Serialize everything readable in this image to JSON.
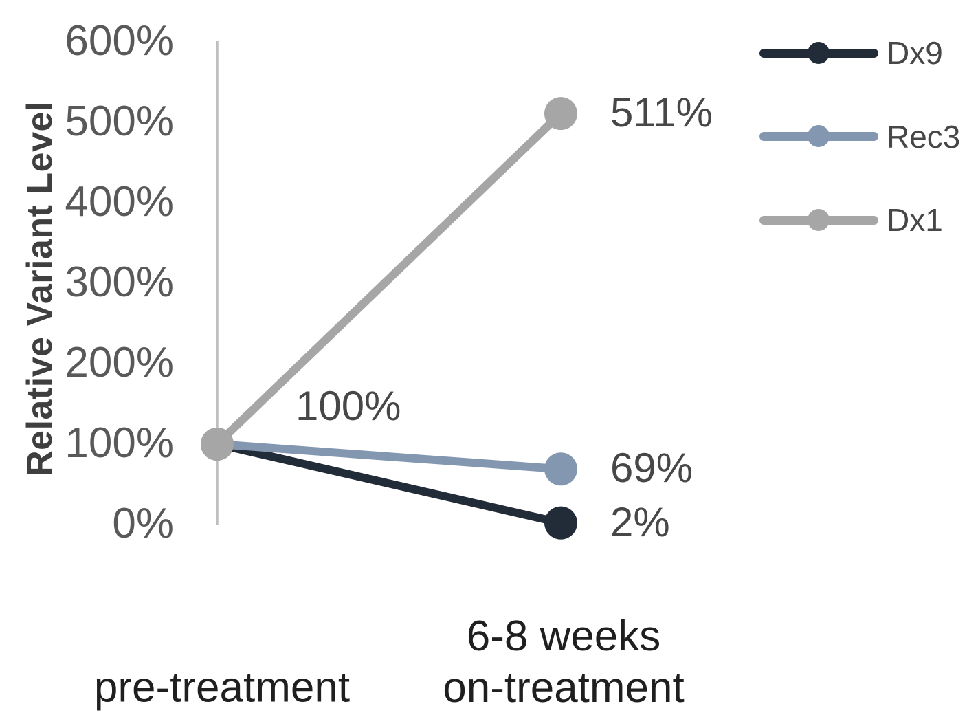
{
  "chart_data": {
    "type": "line",
    "title": "",
    "ylabel": "Relative Variant Level",
    "xlabel": "",
    "categories": [
      "pre-treatment",
      "6-8 weeks on-treatment"
    ],
    "x_tick_lines": [
      [
        "pre-treatment"
      ],
      [
        "6-8 weeks",
        "on-treatment"
      ]
    ],
    "yticks": [
      "0%",
      "100%",
      "200%",
      "300%",
      "400%",
      "500%",
      "600%"
    ],
    "ytick_values": [
      0,
      100,
      200,
      300,
      400,
      500,
      600
    ],
    "ylim": [
      0,
      600
    ],
    "grid": false,
    "legend_position": "right",
    "legend_order": [
      "Dx9",
      "Rec3",
      "Dx1"
    ],
    "shared_start_label": "100%",
    "series": [
      {
        "name": "Dx9",
        "color": "#222B38",
        "values": [
          100,
          2
        ],
        "end_label": "2%"
      },
      {
        "name": "Rec3",
        "color": "#8497B0",
        "values": [
          100,
          69
        ],
        "end_label": "69%"
      },
      {
        "name": "Dx1",
        "color": "#A6A6A6",
        "values": [
          100,
          511
        ],
        "end_label": "511%"
      }
    ]
  },
  "colors": {
    "background": "#FFFFFF",
    "axis_line": "#BFBFBF",
    "tick_label": "#595959",
    "data_label": "#474747",
    "category_label": "#1F1F1F",
    "axis_title": "#3F3F3F",
    "legend_label": "#474747"
  }
}
